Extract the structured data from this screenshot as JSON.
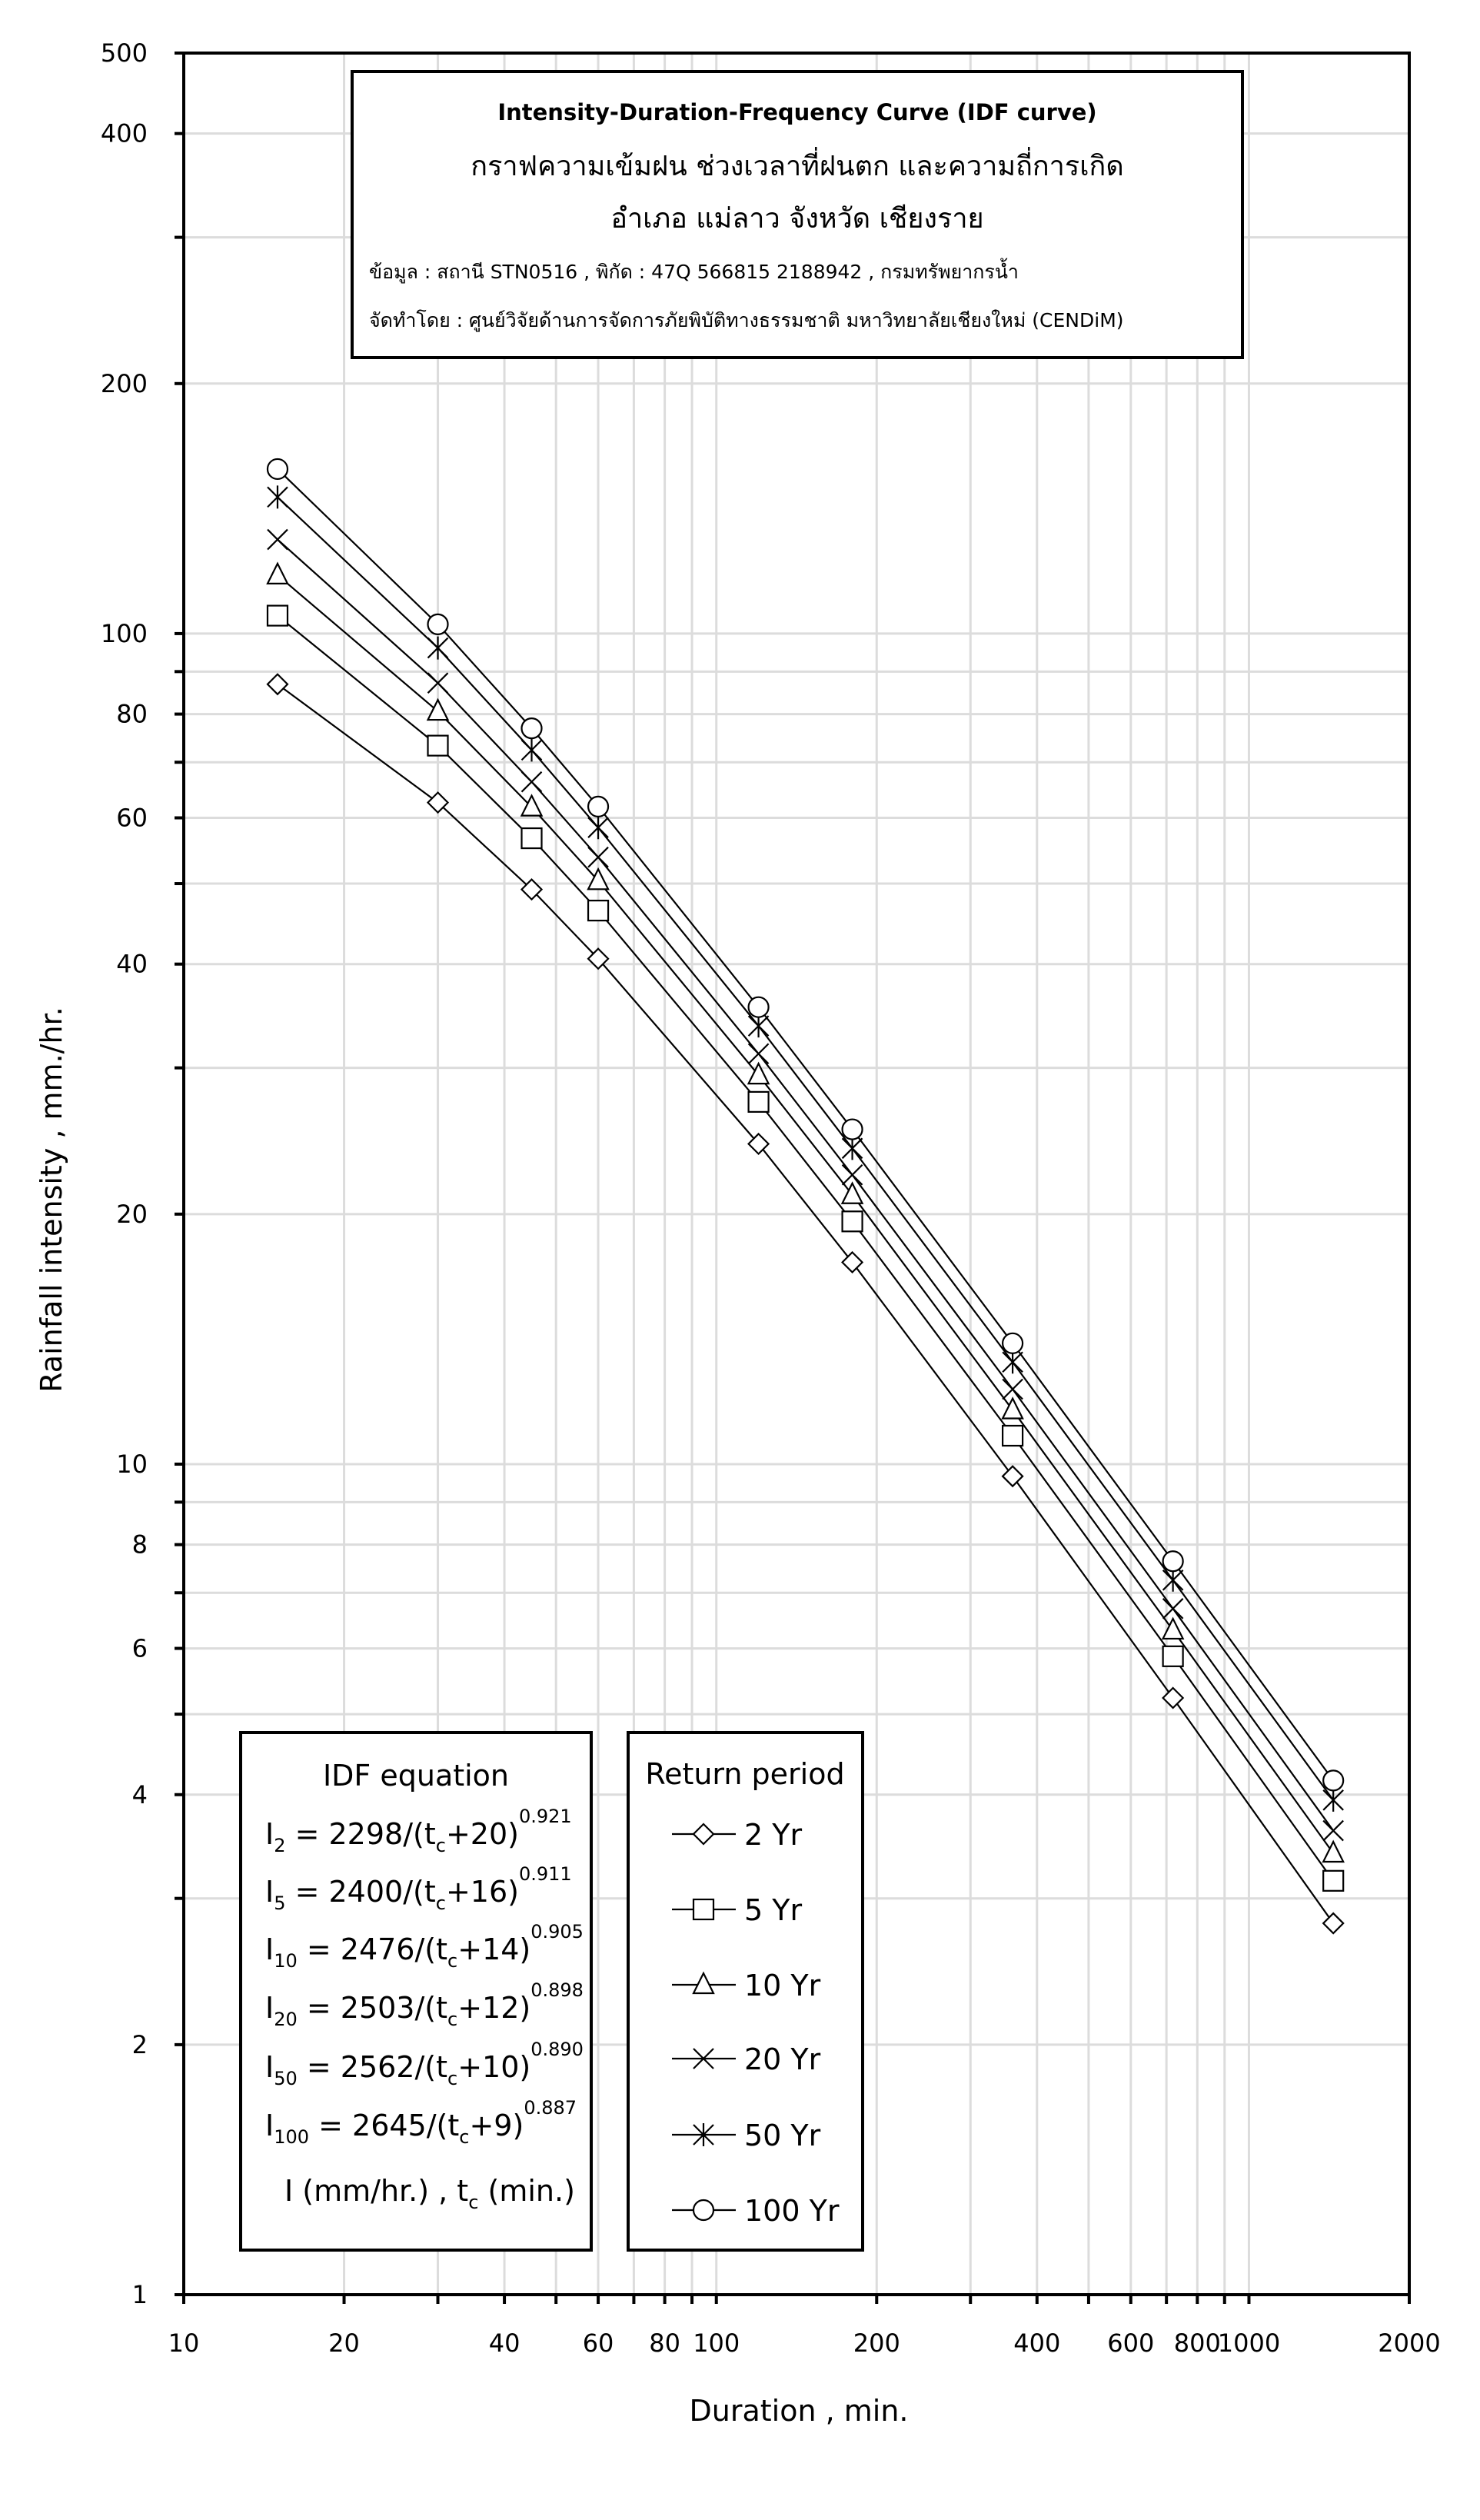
{
  "title_box": {
    "title_en": "Intensity-Duration-Frequency Curve (IDF curve)",
    "title_th": "กราฟความเข้มฝน ช่วงเวลาที่ฝนตก และความถี่การเกิด",
    "location": "อำเภอ แม่ลาว จังหวัด เชียงราย",
    "data_source": "ข้อมูล : สถานี STN0516 , พิกัด : 47Q 566815 2188942 , กรมทรัพยากรน้ำ",
    "prepared_by": "จัดทำโดย : ศูนย์วิจัยด้านการจัดการภัยพิบัติทางธรรมชาติ มหาวิทยาลัยเชียงใหม่ (CENDiM)"
  },
  "equation_box": {
    "header": "IDF equation",
    "equations": [
      {
        "I": "I",
        "sub": "2",
        "body": " = 2298/(t",
        "tsub": "c",
        "tail": "+20)",
        "exp": "0.921"
      },
      {
        "I": "I",
        "sub": "5",
        "body": " = 2400/(t",
        "tsub": "c",
        "tail": "+16)",
        "exp": "0.911"
      },
      {
        "I": "I",
        "sub": "10",
        "body": " = 2476/(t",
        "tsub": "c",
        "tail": "+14)",
        "exp": "0.905"
      },
      {
        "I": "I",
        "sub": "20",
        "body": " = 2503/(t",
        "tsub": "c",
        "tail": "+12)",
        "exp": "0.898"
      },
      {
        "I": "I",
        "sub": "50",
        "body": " = 2562/(t",
        "tsub": "c",
        "tail": "+10)",
        "exp": "0.890"
      },
      {
        "I": "I",
        "sub": "100",
        "body": " = 2645/(t",
        "tsub": "c",
        "tail": "+9)",
        "exp": "0.887"
      }
    ],
    "units": {
      "a": "I (mm/hr.) , t",
      "sub": "c",
      "b": " (min.)"
    }
  },
  "chart_data": {
    "type": "line",
    "title": "Intensity-Duration-Frequency Curve (IDF curve)",
    "xlabel": "Duration , min.",
    "ylabel": "Rainfall intensity , mm./hr.",
    "xscale": "log",
    "yscale": "log",
    "xlim": [
      10,
      2000
    ],
    "ylim": [
      1,
      500
    ],
    "grid": true,
    "legend_title": "Return period",
    "legend_placement": "bottom-left",
    "x_tick_labels": [
      "10",
      "20",
      "40",
      "60",
      "80",
      "100",
      "200",
      "400",
      "600",
      "800",
      "1000",
      "2000"
    ],
    "y_tick_labels": [
      "1",
      "2",
      "4",
      "6",
      "8",
      "10",
      "20",
      "40",
      "60",
      "80",
      "100",
      "200",
      "400",
      "500"
    ],
    "x": [
      15,
      30,
      45,
      60,
      120,
      180,
      360,
      720,
      1440
    ],
    "series": [
      {
        "name": "2 Yr",
        "marker": "diamond",
        "values": [
          86.9,
          62.6,
          49.2,
          40.6,
          24.3,
          17.5,
          9.67,
          5.23,
          2.8
        ]
      },
      {
        "name": "5 Yr",
        "marker": "square",
        "values": [
          105.1,
          73.3,
          56.7,
          46.4,
          27.3,
          19.6,
          10.82,
          5.87,
          3.15
        ]
      },
      {
        "name": "10 Yr",
        "marker": "triangle",
        "values": [
          117.6,
          80.6,
          61.8,
          50.4,
          29.4,
          21.1,
          11.62,
          6.31,
          3.4
        ]
      },
      {
        "name": "20 Yr",
        "marker": "x",
        "values": [
          129.8,
          87.2,
          66.3,
          53.8,
          31.2,
          22.3,
          12.31,
          6.7,
          3.62
        ]
      },
      {
        "name": "50 Yr",
        "marker": "asterisk",
        "values": [
          146.0,
          96.1,
          72.4,
          58.4,
          33.7,
          24.0,
          13.27,
          7.25,
          3.94
        ]
      },
      {
        "name": "100 Yr",
        "marker": "circle",
        "values": [
          157.8,
          102.6,
          76.9,
          61.9,
          35.5,
          25.3,
          13.98,
          7.64,
          4.16
        ]
      }
    ]
  }
}
